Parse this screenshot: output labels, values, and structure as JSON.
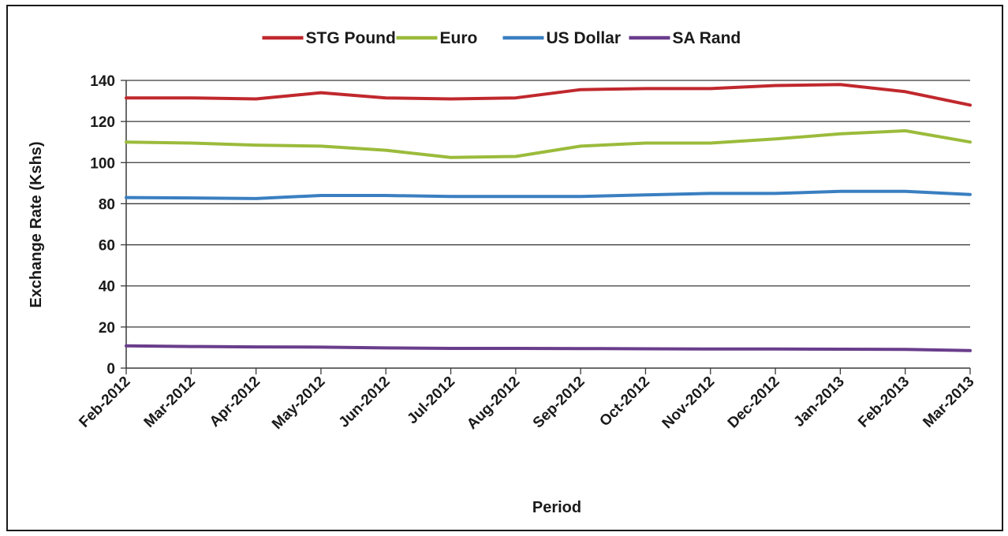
{
  "chart_data": {
    "type": "line",
    "title": "",
    "xlabel": "Period",
    "ylabel": "Exchange Rate (Kshs)",
    "ylim": [
      0,
      140
    ],
    "yticks": [
      0,
      20,
      40,
      60,
      80,
      100,
      120,
      140
    ],
    "grid": "horizontal",
    "legend_position": "top",
    "categories": [
      "Feb-2012",
      "Mar-2012",
      "Apr-2012",
      "May-2012",
      "Jun-2012",
      "Jul-2012",
      "Aug-2012",
      "Sep-2012",
      "Oct-2012",
      "Nov-2012",
      "Dec-2012",
      "Jan-2013",
      "Feb-2013",
      "Mar-2013"
    ],
    "series": [
      {
        "name": "STG Pound",
        "color": "#c0282d",
        "values": [
          131.5,
          131.5,
          131.0,
          134.0,
          131.5,
          131.0,
          131.5,
          135.5,
          136.0,
          136.0,
          137.5,
          138.0,
          134.5,
          128.0
        ]
      },
      {
        "name": "Euro",
        "color": "#9bbb3b",
        "values": [
          110.0,
          109.5,
          108.5,
          108.0,
          106.0,
          102.5,
          103.0,
          108.0,
          109.5,
          109.5,
          111.5,
          114.0,
          115.5,
          110.0
        ]
      },
      {
        "name": "US Dollar",
        "color": "#3a7fc1",
        "values": [
          83.0,
          82.8,
          82.5,
          84.0,
          84.0,
          83.5,
          83.5,
          83.5,
          84.3,
          85.0,
          85.0,
          86.0,
          86.0,
          84.5
        ]
      },
      {
        "name": "SA Rand",
        "color": "#6a3d8c",
        "values": [
          10.8,
          10.5,
          10.3,
          10.2,
          9.8,
          9.6,
          9.6,
          9.5,
          9.4,
          9.3,
          9.3,
          9.2,
          9.1,
          8.5
        ]
      }
    ]
  }
}
